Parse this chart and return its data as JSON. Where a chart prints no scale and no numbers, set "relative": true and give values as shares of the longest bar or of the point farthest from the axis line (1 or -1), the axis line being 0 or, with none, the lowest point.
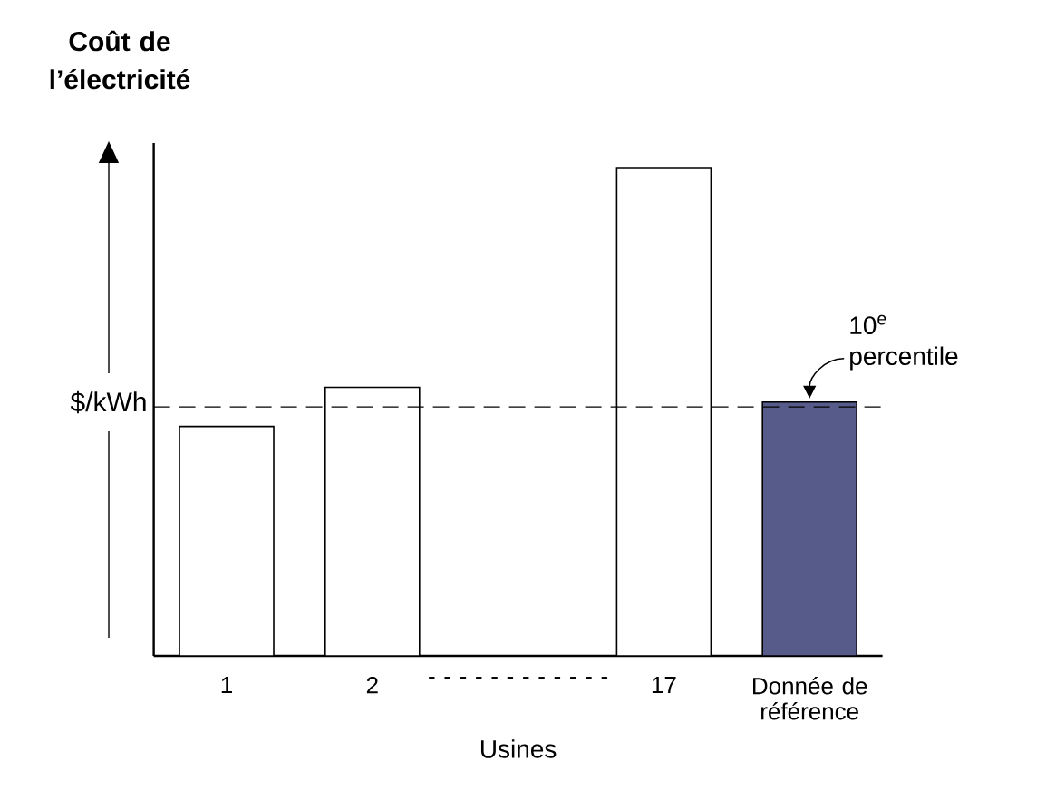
{
  "chart_data": {
    "type": "bar",
    "title": "Coût de l’électricité",
    "xlabel": "Usines",
    "ylabel": "$/kWh",
    "categories": [
      "1",
      "2",
      "- - - - - - - - - - - -",
      "17",
      "Donnée de référence"
    ],
    "values": [
      0.47,
      0.55,
      null,
      1,
      0.52
    ],
    "colors": [
      "#ffffff",
      "#ffffff",
      "#ffffff",
      "#ffffff",
      "#575b8a"
    ],
    "relative": true,
    "ref_lines": [
      {
        "axis": "y",
        "value": 0.51,
        "line_style": "dashed",
        "color": "#000000"
      }
    ],
    "annotations": [
      "10$^{e}$ percentile"
    ]
  }
}
